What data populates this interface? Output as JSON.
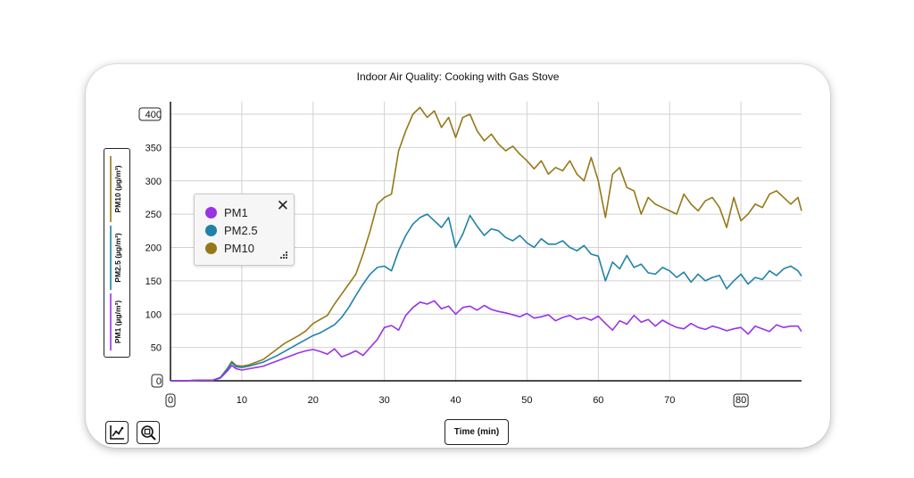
{
  "chart_data": {
    "type": "line",
    "title": "Indoor Air Quality: Cooking with Gas Stove",
    "xlabel": "Time (min)",
    "xlim": [
      0,
      88.5
    ],
    "ylim": [
      0,
      400
    ],
    "x_ticks": [
      "0",
      "10",
      "20",
      "30",
      "40",
      "50",
      "60",
      "70",
      "80"
    ],
    "y_ticks": [
      "0",
      "50",
      "100",
      "150",
      "200",
      "250",
      "300",
      "350",
      "400"
    ],
    "grid": true,
    "legend_placement": "left-middle",
    "series": [
      {
        "name": "PM1",
        "axis_label": "PM1 (µg/m³)",
        "color": "#9933e6",
        "x": [
          0,
          2,
          4,
          6,
          7,
          8,
          8.6,
          9.2,
          10,
          11,
          12,
          13,
          14,
          15,
          16,
          17,
          18,
          19,
          20,
          21,
          22,
          23,
          24,
          25,
          26,
          27,
          28,
          29,
          30,
          31,
          32,
          33,
          34,
          35,
          36,
          37,
          38,
          39,
          40,
          41,
          42,
          43,
          44,
          45,
          46,
          47,
          48,
          49,
          50,
          51,
          52,
          53,
          54,
          55,
          56,
          57,
          58,
          59,
          60,
          61,
          62,
          63,
          64,
          65,
          66,
          67,
          68,
          69,
          70,
          71,
          72,
          73,
          74,
          75,
          76,
          77,
          78,
          79,
          80,
          81,
          82,
          83,
          84,
          85,
          86,
          87,
          88,
          88.5
        ],
        "values": [
          0,
          0,
          1,
          1,
          4,
          15,
          23,
          18,
          16,
          18,
          20,
          22,
          26,
          30,
          34,
          38,
          42,
          45,
          47,
          44,
          40,
          48,
          36,
          40,
          45,
          38,
          50,
          62,
          80,
          83,
          76,
          98,
          110,
          118,
          115,
          120,
          108,
          112,
          100,
          110,
          112,
          106,
          113,
          107,
          104,
          102,
          99,
          96,
          101,
          94,
          96,
          99,
          90,
          95,
          98,
          92,
          95,
          91,
          97,
          86,
          76,
          90,
          85,
          98,
          88,
          92,
          82,
          91,
          85,
          80,
          78,
          86,
          80,
          77,
          82,
          79,
          75,
          78,
          80,
          70,
          82,
          78,
          74,
          84,
          80,
          82,
          82,
          74
        ]
      },
      {
        "name": "PM2.5",
        "axis_label": "PM2.5 (µg/m³)",
        "color": "#1f82a8",
        "x": [
          0,
          2,
          4,
          6,
          7,
          8,
          8.6,
          9.2,
          10,
          11,
          12,
          13,
          14,
          15,
          16,
          17,
          18,
          19,
          20,
          21,
          22,
          23,
          24,
          25,
          26,
          27,
          28,
          29,
          30,
          31,
          32,
          33,
          34,
          35,
          36,
          37,
          38,
          39,
          40,
          41,
          42,
          43,
          44,
          45,
          46,
          47,
          48,
          49,
          50,
          51,
          52,
          53,
          54,
          55,
          56,
          57,
          58,
          59,
          60,
          61,
          62,
          63,
          64,
          65,
          66,
          67,
          68,
          69,
          70,
          71,
          72,
          73,
          74,
          75,
          76,
          77,
          78,
          79,
          80,
          81,
          82,
          83,
          84,
          85,
          86,
          87,
          88,
          88.5
        ],
        "values": [
          0,
          0,
          1,
          1,
          5,
          18,
          27,
          21,
          20,
          22,
          25,
          28,
          33,
          38,
          44,
          50,
          56,
          62,
          68,
          72,
          78,
          84,
          95,
          110,
          128,
          145,
          160,
          170,
          172,
          165,
          195,
          218,
          235,
          245,
          250,
          240,
          230,
          245,
          200,
          220,
          248,
          232,
          218,
          228,
          225,
          215,
          210,
          218,
          207,
          200,
          213,
          205,
          205,
          210,
          200,
          195,
          203,
          190,
          187,
          150,
          178,
          168,
          188,
          170,
          175,
          162,
          160,
          170,
          165,
          155,
          163,
          148,
          160,
          150,
          155,
          158,
          138,
          150,
          160,
          145,
          155,
          152,
          165,
          158,
          168,
          172,
          165,
          157
        ]
      },
      {
        "name": "PM10",
        "axis_label": "PM10 (µg/m³)",
        "color": "#967818",
        "x": [
          0,
          2,
          4,
          6,
          7,
          8,
          8.6,
          9.2,
          10,
          11,
          12,
          13,
          14,
          15,
          16,
          17,
          18,
          19,
          20,
          21,
          22,
          23,
          24,
          25,
          26,
          27,
          28,
          29,
          30,
          31,
          32,
          33,
          34,
          35,
          36,
          37,
          38,
          39,
          40,
          41,
          42,
          43,
          44,
          45,
          46,
          47,
          48,
          49,
          50,
          51,
          52,
          53,
          54,
          55,
          56,
          57,
          58,
          59,
          60,
          61,
          62,
          63,
          64,
          65,
          66,
          67,
          68,
          69,
          70,
          71,
          72,
          73,
          74,
          75,
          76,
          77,
          78,
          79,
          80,
          81,
          82,
          83,
          84,
          85,
          86,
          87,
          88,
          88.5
        ],
        "values": [
          0,
          0,
          1,
          1,
          5,
          19,
          29,
          23,
          22,
          24,
          28,
          32,
          40,
          48,
          56,
          62,
          68,
          75,
          86,
          92,
          98,
          115,
          130,
          145,
          160,
          190,
          225,
          265,
          275,
          280,
          345,
          375,
          400,
          410,
          395,
          405,
          380,
          395,
          365,
          395,
          400,
          375,
          360,
          370,
          355,
          345,
          352,
          340,
          330,
          318,
          330,
          310,
          320,
          315,
          330,
          310,
          300,
          335,
          300,
          245,
          310,
          320,
          290,
          285,
          250,
          275,
          265,
          260,
          255,
          250,
          280,
          265,
          255,
          270,
          275,
          260,
          230,
          275,
          240,
          250,
          265,
          260,
          280,
          285,
          275,
          265,
          275,
          255
        ]
      }
    ]
  },
  "legend": {
    "close_icon": "close-icon",
    "grip_icon": "resize-grip-icon"
  },
  "toolbar": {
    "buttons": [
      "auto-scale-icon",
      "zoom-icon"
    ]
  }
}
